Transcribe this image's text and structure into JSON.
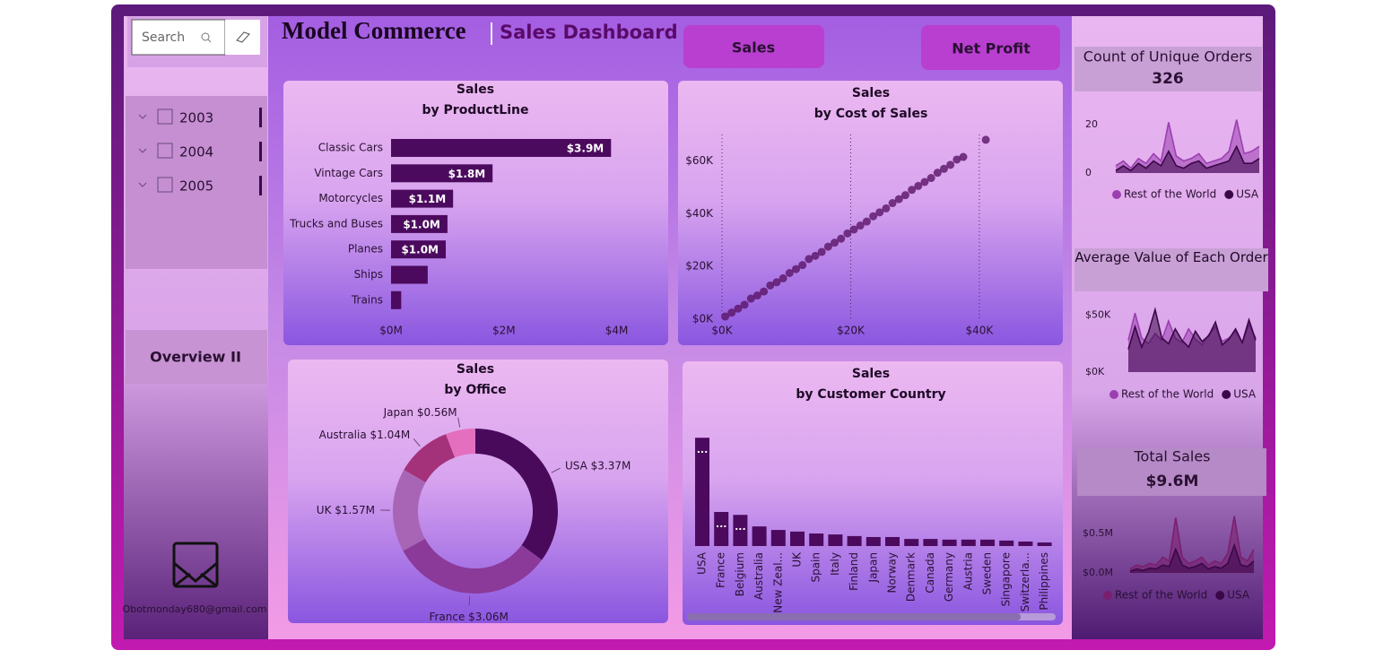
{
  "header": {
    "title": "Model Commerce",
    "subtitle": "Sales Dashboard"
  },
  "search": {
    "placeholder": "Search"
  },
  "year_filter": [
    "2003",
    "2004",
    "2005"
  ],
  "nav": {
    "button": "Overview II",
    "email": "Obotmonday680@gmail.com"
  },
  "buttons": [
    "Sales",
    "Net Profit"
  ],
  "chart_data": [
    {
      "type": "bar",
      "title": "Sales",
      "subtitle": "by ProductLine",
      "categories": [
        "Classic Cars",
        "Vintage Cars",
        "Motorcycles",
        "Trucks and Buses",
        "Planes",
        "Ships",
        "Trains"
      ],
      "values": [
        3.9,
        1.8,
        1.1,
        1.0,
        0.97,
        0.65,
        0.18
      ],
      "value_labels": [
        "$3.9M",
        "$1.8M",
        "$1.1M",
        "$1.0M",
        "$1.0M",
        null,
        null
      ],
      "color": "#4b0a5e",
      "xlim": [
        0,
        4.5
      ],
      "xticks": [
        {
          "value": 0,
          "label": "$0M"
        },
        {
          "value": 2,
          "label": "$2M"
        },
        {
          "value": 4,
          "label": "$4M"
        }
      ]
    },
    {
      "type": "scatter",
      "title": "Sales",
      "subtitle": "by Cost of Sales",
      "color": "#5a1468",
      "grid": true,
      "x": [
        500,
        1500,
        2500,
        3500,
        4500,
        5500,
        6500,
        7500,
        8500,
        9500,
        10500,
        11500,
        12500,
        13500,
        14500,
        15500,
        16500,
        17500,
        18500,
        19500,
        20500,
        21500,
        22500,
        23500,
        24500,
        25500,
        26500,
        27500,
        28500,
        29500,
        30500,
        31500,
        32500,
        33500,
        34500,
        35500,
        36500,
        37500,
        41000
      ],
      "values": [
        1000,
        2500,
        4000,
        5500,
        7800,
        9000,
        10500,
        12800,
        14000,
        15500,
        17500,
        19000,
        20500,
        22800,
        24000,
        25500,
        27500,
        29000,
        30500,
        32500,
        34000,
        35500,
        37000,
        39000,
        40500,
        42000,
        44000,
        45500,
        47000,
        49000,
        50500,
        52000,
        53500,
        55500,
        57000,
        58500,
        60500,
        61500,
        68000
      ],
      "xlim": [
        0,
        52000
      ],
      "ylim": [
        0,
        70000
      ],
      "xticks": [
        {
          "value": 0,
          "label": "$0K"
        },
        {
          "value": 20000,
          "label": "$20K"
        },
        {
          "value": 40000,
          "label": "$40K"
        }
      ],
      "yticks": [
        {
          "value": 0,
          "label": "$0K"
        },
        {
          "value": 20000,
          "label": "$20K"
        },
        {
          "value": 40000,
          "label": "$40K"
        },
        {
          "value": 60000,
          "label": "$60K"
        }
      ]
    },
    {
      "type": "donut",
      "title": "Sales",
      "subtitle": "by Office",
      "categories": [
        "USA",
        "France",
        "UK",
        "Australia",
        "Japan"
      ],
      "values": [
        3.37,
        3.06,
        1.57,
        1.04,
        0.56
      ],
      "value_labels": [
        "$3.37M",
        "$3.06M",
        "$1.57M",
        "$1.04M",
        "$0.56M"
      ],
      "colors": [
        "#4a0a5c",
        "#8b3a9a",
        "#a865b5",
        "#a3327a",
        "#e46fbf"
      ]
    },
    {
      "type": "column",
      "title": "Sales",
      "subtitle": "by Customer Country",
      "color": "#4b0a5e",
      "ylim": [
        0,
        3.6
      ],
      "categories": [
        "USA",
        "France",
        "Belgium",
        "Australia",
        "New Zeal...",
        "UK",
        "Spain",
        "Italy",
        "Finland",
        "Japan",
        "Norway",
        "Denmark",
        "Canada",
        "Germany",
        "Austria",
        "Sweden",
        "Singapore",
        "Switzerla...",
        "Philippines"
      ],
      "values": [
        3.37,
        1.06,
        0.97,
        0.61,
        0.5,
        0.45,
        0.39,
        0.36,
        0.31,
        0.28,
        0.28,
        0.22,
        0.22,
        0.2,
        0.2,
        0.2,
        0.17,
        0.14,
        0.11
      ],
      "value_labels": [
        "...",
        "...",
        "...",
        null,
        null,
        null,
        null,
        null,
        null,
        null,
        null,
        null,
        null,
        null,
        null,
        null,
        null,
        null,
        null
      ]
    },
    {
      "type": "area",
      "title": "Count of Unique Orders",
      "kpi": 326,
      "ylim": [
        -2,
        25
      ],
      "yticks": [
        0,
        20
      ],
      "series": [
        {
          "name": "Rest of the World",
          "color": "#9b3fb0",
          "values": [
            3,
            5,
            2,
            6,
            4,
            8,
            5,
            21,
            7,
            5,
            6,
            8,
            4,
            5,
            6,
            9,
            22,
            8,
            9,
            11
          ]
        },
        {
          "name": "USA",
          "color": "#3b0748",
          "values": [
            1,
            3,
            1,
            4,
            2,
            5,
            3,
            9,
            3,
            2,
            4,
            5,
            2,
            3,
            4,
            5,
            11,
            4,
            4,
            6
          ]
        }
      ]
    },
    {
      "type": "area",
      "title": "Average Value of Each Order",
      "ylim": [
        0,
        60000
      ],
      "yticks": [
        {
          "value": 0,
          "label": "$0K"
        },
        {
          "value": 50000,
          "label": "$50K"
        }
      ],
      "series": [
        {
          "name": "Rest of the World",
          "color": "#9b3fb0",
          "values": [
            28000,
            52000,
            30000,
            25000,
            34000,
            28000,
            45000,
            30000,
            26000,
            38000,
            29000,
            24000,
            33000,
            40000,
            27000,
            30000,
            36000,
            26000,
            42000,
            30000
          ]
        },
        {
          "name": "USA",
          "color": "#3b0748",
          "values": [
            20000,
            40000,
            22000,
            35000,
            55000,
            30000,
            25000,
            38000,
            28000,
            22000,
            36000,
            27000,
            32000,
            44000,
            24000,
            29000,
            38000,
            26000,
            46000,
            28000
          ]
        }
      ]
    },
    {
      "type": "area",
      "title": "Total Sales",
      "kpi": "$9.6M",
      "ylim": [
        -0.05,
        0.75
      ],
      "yticks": [
        {
          "value": 0.5,
          "label": "$0.5M"
        },
        {
          "value": 0,
          "label": "$0.0M"
        }
      ],
      "series": [
        {
          "name": "Rest of the World",
          "color": "#7a1f6e",
          "values": [
            0.05,
            0.1,
            0.08,
            0.12,
            0.1,
            0.2,
            0.15,
            0.7,
            0.2,
            0.12,
            0.15,
            0.2,
            0.1,
            0.15,
            0.12,
            0.25,
            0.72,
            0.2,
            0.15,
            0.3
          ]
        },
        {
          "name": "USA",
          "color": "#3b0748",
          "values": [
            0.02,
            0.05,
            0.03,
            0.06,
            0.05,
            0.1,
            0.08,
            0.3,
            0.1,
            0.06,
            0.08,
            0.12,
            0.05,
            0.08,
            0.06,
            0.12,
            0.35,
            0.1,
            0.08,
            0.15
          ]
        }
      ]
    }
  ]
}
